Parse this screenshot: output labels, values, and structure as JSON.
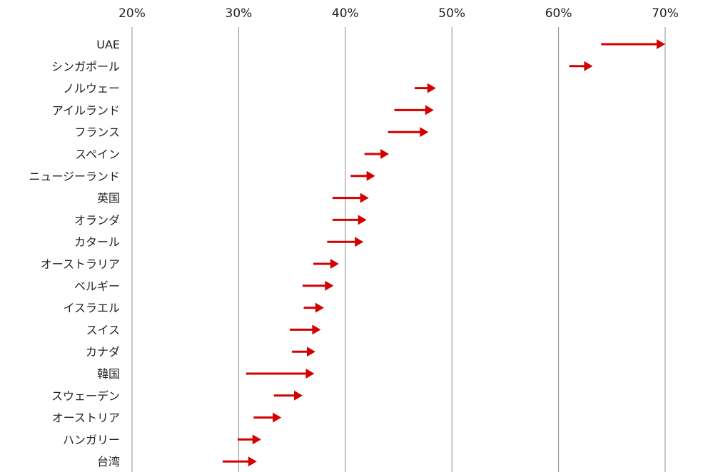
{
  "chart_data": {
    "type": "arrow",
    "x_ticks": [
      "20%",
      "30%",
      "40%",
      "50%",
      "60%",
      "70%"
    ],
    "xlim": [
      20,
      70
    ],
    "grid": true,
    "colors": {
      "arrow": "#d40000",
      "grid": "#8c8c8c",
      "text": "#222222"
    },
    "categories": [
      "UAE",
      "シンガポール",
      "ノルウェー",
      "アイルランド",
      "フランス",
      "スペイン",
      "ニュージーランド",
      "英国",
      "オランダ",
      "カタール",
      "オーストラリア",
      "ベルギー",
      "イスラエル",
      "スイス",
      "カナダ",
      "韓国",
      "スウェーデン",
      "オーストリア",
      "ハンガリー",
      "台湾"
    ],
    "series": [
      {
        "from": [
          64.0,
          61.0,
          46.5,
          44.6,
          44.0,
          41.8,
          40.5,
          38.8,
          38.8,
          38.3,
          37.0,
          36.0,
          36.1,
          34.8,
          35.0,
          30.7,
          33.3,
          31.4,
          29.9,
          28.5
        ],
        "to": [
          70.0,
          63.2,
          48.5,
          48.3,
          47.8,
          44.1,
          42.8,
          42.2,
          42.0,
          41.7,
          39.4,
          38.9,
          38.0,
          37.7,
          37.2,
          37.1,
          36.0,
          34.0,
          32.1,
          31.7
        ]
      }
    ]
  }
}
